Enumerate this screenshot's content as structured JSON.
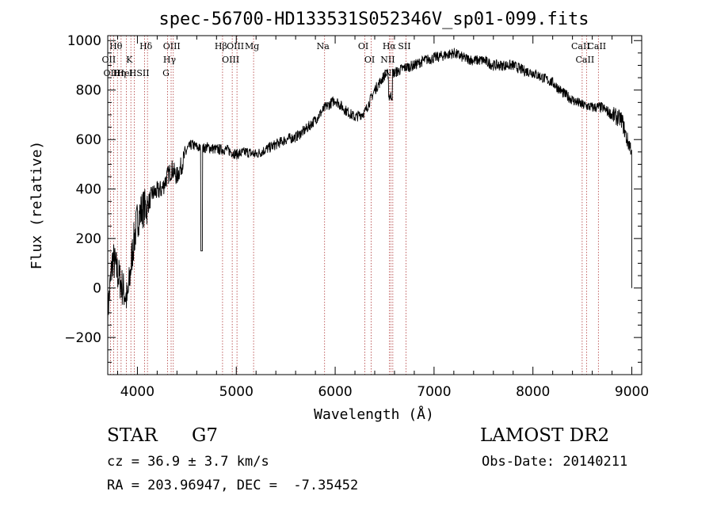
{
  "chart_data": {
    "type": "line",
    "title": "spec-56700-HD133531S052346V_sp01-099.fits",
    "xlabel": "Wavelength (Å)",
    "ylabel": "Flux (relative)",
    "xlim": [
      3700,
      9100
    ],
    "ylim": [
      -350,
      1020
    ],
    "x_ticks": [
      4000,
      5000,
      6000,
      7000,
      8000,
      9000
    ],
    "y_ticks": [
      -200,
      0,
      200,
      400,
      600,
      800,
      1000
    ],
    "y_tick_labels": [
      "−200",
      "0",
      "200",
      "400",
      "600",
      "800",
      "1000"
    ],
    "grid": false,
    "line_color": "#000000",
    "marker_color": "#b03a3a",
    "series": [
      {
        "x": [
          3700,
          3750,
          3800,
          3850,
          3900,
          3950,
          4000,
          4050,
          4100,
          4150,
          4200,
          4250,
          4300,
          4350,
          4400,
          4450,
          4500,
          4550,
          4600,
          4650,
          4700,
          4800,
          4900,
          5000,
          5100,
          5200,
          5300,
          5400,
          5500,
          5600,
          5700,
          5800,
          5900,
          6000,
          6100,
          6200,
          6300,
          6400,
          6500,
          6600,
          6700,
          6800,
          6900,
          7000,
          7100,
          7200,
          7300,
          7400,
          7500,
          7600,
          7700,
          7800,
          7900,
          8000,
          8100,
          8200,
          8300,
          8400,
          8500,
          8600,
          8700,
          8800,
          8900,
          8950,
          9000
        ],
        "y": [
          -100,
          120,
          60,
          0,
          -50,
          150,
          280,
          320,
          330,
          380,
          390,
          400,
          450,
          480,
          450,
          500,
          560,
          580,
          570,
          560,
          570,
          560,
          560,
          540,
          550,
          540,
          560,
          580,
          600,
          610,
          640,
          680,
          730,
          760,
          720,
          690,
          710,
          800,
          860,
          870,
          890,
          900,
          920,
          930,
          940,
          950,
          930,
          920,
          920,
          900,
          900,
          900,
          880,
          870,
          850,
          830,
          790,
          760,
          740,
          730,
          730,
          700,
          680,
          600,
          560
        ]
      }
    ],
    "lines": [
      {
        "name": "Hθ",
        "x": 3798
      },
      {
        "name": "OII",
        "x": 3727
      },
      {
        "name": "OIII",
        "x": 3760
      },
      {
        "name": "K",
        "x": 3934
      },
      {
        "name": "HeI",
        "x": 3889
      },
      {
        "name": "Hη",
        "x": 3835
      },
      {
        "name": "Hδ",
        "x": 4102
      },
      {
        "name": "SII",
        "x": 4072
      },
      {
        "name": "H",
        "x": 3969
      },
      {
        "name": "OIII",
        "x": 4363
      },
      {
        "name": "Hγ",
        "x": 4341
      },
      {
        "name": "G",
        "x": 4305
      },
      {
        "name": "Hβ",
        "x": 4861
      },
      {
        "name": "OIII",
        "x": 4959
      },
      {
        "name": "OIII",
        "x": 5007
      },
      {
        "name": "Mg",
        "x": 5175
      },
      {
        "name": "Na",
        "x": 5893
      },
      {
        "name": "OI",
        "x": 6300
      },
      {
        "name": "OI",
        "x": 6364
      },
      {
        "name": "Hα",
        "x": 6563
      },
      {
        "name": "NII",
        "x": 6548
      },
      {
        "name": "NII",
        "x": 6583
      },
      {
        "name": "SII",
        "x": 6716
      },
      {
        "name": "CaII",
        "x": 8498
      },
      {
        "name": "CaII",
        "x": 8542
      },
      {
        "name": "CaII",
        "x": 8662
      }
    ]
  },
  "info": {
    "object_class": "STAR",
    "subclass": "G7",
    "survey": "LAMOST DR2",
    "redshift": "cz = 36.9 ± 3.7 km/s",
    "obs_date": "Obs-Date: 20140211",
    "coords": "RA = 203.96947, DEC =  -7.35452"
  }
}
